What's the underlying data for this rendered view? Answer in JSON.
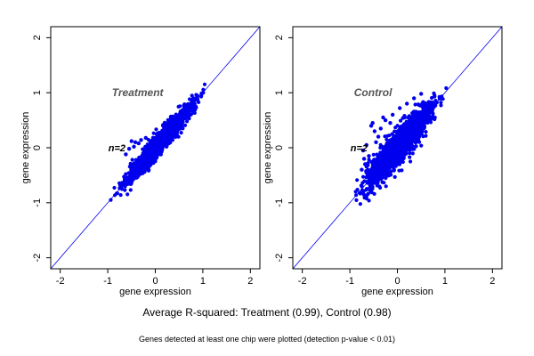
{
  "captions": {
    "average": "Average R-squared: Treatment (0.99), Control (0.98)",
    "note": "Genes detected at least one chip were plotted (detection p-value < 0.01)"
  },
  "colors": {
    "points": "#0000ee",
    "diagonal": "#0000ee",
    "frame": "#000000",
    "panel_label": "#555555"
  },
  "chart_data": [
    {
      "type": "scatter",
      "title": "Treatment",
      "xlabel": "gene expression",
      "ylabel": "gene expression",
      "xlim": [
        -2.2,
        2.2
      ],
      "ylim": [
        -2.2,
        2.2
      ],
      "xticks": [
        -2,
        -1,
        0,
        1,
        2
      ],
      "yticks": [
        -2,
        -1,
        0,
        1,
        2
      ],
      "annotation": {
        "text": "n=2",
        "x": -0.95,
        "y": 0.0
      },
      "title_position": {
        "x": -0.95,
        "y": 1.0
      },
      "reference_line": "y = x",
      "r_squared": 0.99,
      "cloud": {
        "x_range": [
          -1.08,
          1.22
        ],
        "spread": 0.1,
        "count": 1500
      },
      "outliers": [
        {
          "x": -0.5,
          "y": 0.12
        },
        {
          "x": -0.42,
          "y": 0.1
        },
        {
          "x": -0.35,
          "y": 0.08
        },
        {
          "x": -0.3,
          "y": 0.14
        },
        {
          "x": -0.45,
          "y": 0.02
        },
        {
          "x": -0.55,
          "y": -0.02
        },
        {
          "x": -0.2,
          "y": 0.18
        },
        {
          "x": -0.62,
          "y": -0.12
        }
      ],
      "grid": false,
      "legend": "none"
    },
    {
      "type": "scatter",
      "title": "Control",
      "xlabel": "gene expression",
      "ylabel": "gene expression",
      "xlim": [
        -2.2,
        2.2
      ],
      "ylim": [
        -2.2,
        2.2
      ],
      "xticks": [
        -2,
        -1,
        0,
        1,
        2
      ],
      "yticks": [
        -2,
        -1,
        0,
        1,
        2
      ],
      "annotation": {
        "text": "n=2",
        "x": -0.95,
        "y": 0.0
      },
      "title_position": {
        "x": -0.95,
        "y": 1.0
      },
      "reference_line": "y = x",
      "r_squared": 0.98,
      "cloud": {
        "x_range": [
          -1.08,
          1.18
        ],
        "spread": 0.16,
        "count": 1700
      },
      "outliers": [
        {
          "x": -0.72,
          "y": -0.05
        },
        {
          "x": -0.7,
          "y": -0.2
        },
        {
          "x": -0.68,
          "y": -0.3
        },
        {
          "x": -0.75,
          "y": -0.4
        },
        {
          "x": -0.65,
          "y": 0.05
        },
        {
          "x": -0.55,
          "y": 0.4
        },
        {
          "x": -0.52,
          "y": 0.45
        },
        {
          "x": -0.48,
          "y": 0.3
        },
        {
          "x": -0.45,
          "y": 0.1
        },
        {
          "x": -0.4,
          "y": 0.2
        },
        {
          "x": -0.35,
          "y": 0.35
        },
        {
          "x": -0.6,
          "y": -0.15
        },
        {
          "x": -0.3,
          "y": 0.55
        },
        {
          "x": -0.25,
          "y": 0.5
        },
        {
          "x": -0.1,
          "y": 0.6
        },
        {
          "x": 0.05,
          "y": 0.72
        },
        {
          "x": 0.2,
          "y": 0.8
        },
        {
          "x": 0.35,
          "y": 0.9
        },
        {
          "x": 0.5,
          "y": 0.98
        },
        {
          "x": -0.15,
          "y": 0.45
        }
      ],
      "grid": false,
      "legend": "none"
    }
  ]
}
